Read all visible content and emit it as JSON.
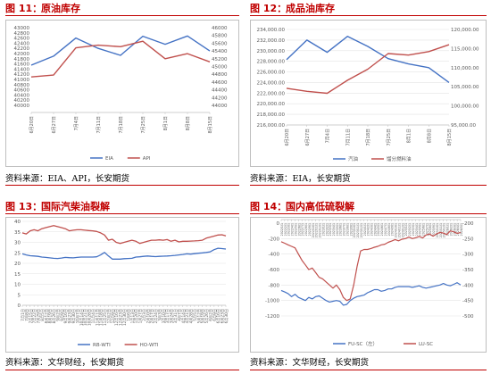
{
  "colors": {
    "blue": "#4472c4",
    "red": "#c0504d",
    "accent": "#c00000"
  },
  "panels": [
    {
      "num": "图 11：",
      "title": "原油库存",
      "source": "资料来源：EIA、API，长安期货"
    },
    {
      "num": "图 12：",
      "title": "成品油库存",
      "source": "资料来源：EIA，长安期货"
    },
    {
      "num": "图 13：",
      "title": "国际汽柴油裂解",
      "source": "资料来源：文华财经，长安期货"
    },
    {
      "num": "图 14：",
      "title": "国内高低硫裂解",
      "source": "资料来源：文华财经，长安期货"
    }
  ],
  "chart_data": [
    {
      "type": "line",
      "x": [
        "6月20日",
        "6月27日",
        "7月4日",
        "7月11日",
        "7月18日",
        "7月25日",
        "8月1日",
        "8月8日",
        "8月15日"
      ],
      "ylim_left": [
        40000,
        43000
      ],
      "yticks_left": [
        40000,
        40200,
        40400,
        40600,
        40800,
        41000,
        41200,
        41400,
        41600,
        41800,
        42000,
        42200,
        42400,
        42600,
        42800,
        43000
      ],
      "ylim_right": [
        44000,
        46000
      ],
      "yticks_right": [
        44000,
        44200,
        44400,
        44600,
        44800,
        45000,
        45200,
        45400,
        45600,
        45800,
        46000
      ],
      "series": [
        {
          "name": "EIA",
          "axis": "left",
          "color": "#4472c4",
          "values": [
            41550,
            41900,
            42600,
            42200,
            41930,
            42670,
            42360,
            42680,
            42100
          ]
        },
        {
          "name": "API",
          "axis": "right",
          "color": "#c0504d",
          "values": [
            44730,
            44780,
            45480,
            45550,
            45510,
            45650,
            45200,
            45330,
            45120
          ]
        }
      ]
    },
    {
      "type": "line",
      "x": [
        "6月20日",
        "6月27日",
        "7月4日",
        "7月11日",
        "7月18日",
        "7月25日",
        "8月1日",
        "8月8日",
        "8月15日"
      ],
      "ylim_left": [
        216000,
        234000
      ],
      "yticks_left": [
        "216,000.00",
        "218,000.00",
        "220,000.00",
        "222,000.00",
        "224,000.00",
        "226,000.00",
        "228,000.00",
        "230,000.00",
        "232,000.00",
        "234,000.00"
      ],
      "ylim_right": [
        95000,
        120000
      ],
      "yticks_right": [
        "95,000.00",
        "100,000.00",
        "105,000.00",
        "110,000.00",
        "115,000.00",
        "120,000.00"
      ],
      "series": [
        {
          "name": "汽油",
          "axis": "left",
          "color": "#4472c4",
          "values": [
            228300,
            232000,
            229700,
            232700,
            230800,
            228500,
            227500,
            226800,
            224000
          ]
        },
        {
          "name": "馏分燃料油",
          "axis": "right",
          "color": "#c0504d",
          "values": [
            104600,
            103800,
            103300,
            106700,
            109600,
            113700,
            113300,
            114200,
            116000
          ]
        }
      ]
    },
    {
      "type": "line",
      "x": [
        "7月1日",
        "7月8日",
        "7月15日",
        "7月22日",
        "7月29日",
        "8月5日",
        "8月12日",
        "8月19日",
        "8月26日",
        "9月2日",
        "9月9日",
        "9月16日",
        "9月23日",
        "9月30日",
        "10月7日",
        "10月14日",
        "10月21日",
        "10月28日",
        "11月4日",
        "11月11日",
        "11月18日",
        "11月25日",
        "12月2日",
        "12月9日",
        "12月16日",
        "12月23日",
        "12月30日",
        "1月6日",
        "1月13日",
        "1月20日",
        "1月27日",
        "2月3日",
        "2月10日",
        "2月17日",
        "2月24日",
        "3月3日",
        "3月10日",
        "3月17日",
        "3月24日",
        "3月31日",
        "4月7日",
        "4月14日",
        "4月21日",
        "4月28日",
        "5月5日",
        "5月12日",
        "5月19日",
        "5月26日",
        "6月2日",
        "6月9日",
        "6月16日",
        "6月23日",
        "6月30日"
      ],
      "ylim": [
        0,
        40
      ],
      "yticks": [
        0,
        5,
        10,
        15,
        20,
        25,
        30,
        35,
        40
      ],
      "series": [
        {
          "name": "RB-WTI",
          "color": "#4472c4",
          "values": [
            24.5,
            24,
            23.6,
            23.5,
            23.3,
            23,
            22.8,
            22.6,
            22.4,
            22.3,
            22.5,
            22.8,
            22.7,
            22.6,
            22.8,
            23,
            23,
            23,
            23,
            23.1,
            24,
            25.2,
            23.5,
            22,
            22,
            22,
            22.2,
            22.3,
            22.4,
            23,
            23.1,
            23.3,
            23.5,
            23.3,
            23.2,
            23.3,
            23.4,
            23.5,
            23.6,
            23.8,
            24,
            24.2,
            24.5,
            24.4,
            24.6,
            24.8,
            25,
            25.2,
            25.5,
            26.5,
            27.2,
            27,
            26.8
          ]
        },
        {
          "name": "HO-WTI",
          "color": "#c0504d",
          "values": [
            34.5,
            34,
            35.5,
            36,
            35.5,
            36.5,
            37,
            37.5,
            38,
            37.5,
            37,
            36.5,
            35.5,
            35.8,
            36,
            36,
            35.8,
            35.6,
            35.5,
            35.2,
            34.5,
            33.5,
            31,
            31.5,
            30,
            29.5,
            30,
            30.5,
            31,
            30.5,
            29.5,
            30,
            30.5,
            31,
            31,
            31.2,
            31,
            31.3,
            30.5,
            31,
            30.2,
            30.5,
            30.5,
            30.6,
            30.7,
            30.8,
            31,
            32,
            32.5,
            33,
            33.5,
            33.6,
            33.1
          ]
        }
      ]
    },
    {
      "type": "line",
      "x": [
        "2022/1/1",
        "2022/2/1",
        "2022/3/1",
        "2022/4/1",
        "2022/5/1",
        "2022/6/1",
        "2022/7/1",
        "2022/8/1",
        "2022/9/1",
        "2022/10/1",
        "2022/11/1",
        "2022/12/1",
        "2023/1/1",
        "2023/2/1",
        "2023/3/1",
        "2023/4/1",
        "2023/5/1",
        "2023/6/1",
        "2023/7/1",
        "2023/8/1",
        "2023/9/1",
        "2023/10/1",
        "2023/11/1",
        "2023/12/1",
        "2024/1/1",
        "2024/2/1",
        "2024/3/1",
        "2024/4/1",
        "2024/5/1",
        "2024/6/1",
        "2024/7/1",
        "2024/8/1",
        "2024/9/1",
        "2024/10/1",
        "2024/11/1",
        "2024/12/1",
        "2025/1/1",
        "2025/2/1",
        "2025/3/1",
        "2025/4/1",
        "2025/5/1",
        "2025/6/1",
        "2025/7/1",
        "2025/8/1",
        "2025/9/1",
        "2025/10/1",
        "2025/11/1",
        "2025/12/1",
        "2026/1/1",
        "2026/2/1",
        "2026/3/1",
        "2026/4/1",
        "2026/5/1"
      ],
      "ylim_left": [
        -1200,
        0
      ],
      "yticks_left": [
        -1200,
        -1000,
        -800,
        -600,
        -400,
        -200,
        0
      ],
      "ylim_right": [
        -500,
        -200
      ],
      "yticks_right": [
        -500,
        -450,
        -400,
        -350,
        -300,
        -250,
        -200
      ],
      "series": [
        {
          "name": "FU-SC（左）",
          "axis": "left",
          "color": "#4472c4",
          "values": [
            -870,
            -890,
            -910,
            -950,
            -920,
            -960,
            -980,
            -1000,
            -960,
            -980,
            -950,
            -940,
            -970,
            -1000,
            -1020,
            -1010,
            -1000,
            -1010,
            -1060,
            -1050,
            -1000,
            -970,
            -950,
            -940,
            -930,
            -900,
            -880,
            -860,
            -860,
            -880,
            -870,
            -850,
            -850,
            -830,
            -820,
            -820,
            -820,
            -820,
            -830,
            -820,
            -810,
            -830,
            -840,
            -830,
            -820,
            -810,
            -800,
            -780,
            -800,
            -810,
            -790,
            -770,
            -800
          ]
        },
        {
          "name": "LU-SC",
          "axis": "right",
          "color": "#c0504d",
          "values": [
            -260,
            -265,
            -270,
            -275,
            -280,
            -300,
            -320,
            -335,
            -350,
            -345,
            -360,
            -375,
            -380,
            -390,
            -400,
            -410,
            -400,
            -415,
            -440,
            -450,
            -445,
            -400,
            -340,
            -290,
            -285,
            -285,
            -282,
            -278,
            -275,
            -270,
            -268,
            -262,
            -258,
            -253,
            -257,
            -252,
            -250,
            -245,
            -250,
            -247,
            -243,
            -248,
            -238,
            -235,
            -242,
            -235,
            -230,
            -232,
            -237,
            -225,
            -228,
            -233,
            -230
          ]
        }
      ]
    }
  ]
}
